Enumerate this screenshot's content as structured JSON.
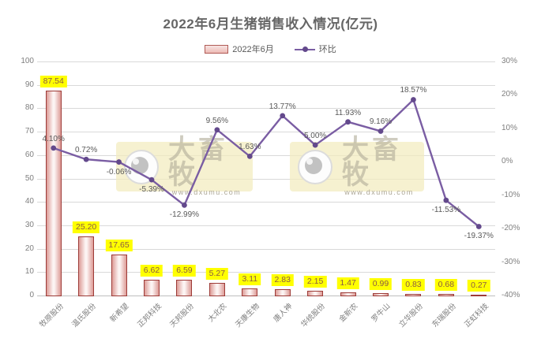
{
  "title": "2022年6月生猪销售收入情况(亿元)",
  "legend": {
    "bar_label": "2022年6月",
    "line_label": "环比"
  },
  "watermark": {
    "name": "大畜牧",
    "url": "www.dxumu.com"
  },
  "colors": {
    "bar_border": "#9d3c38",
    "bar_fill_edge": "#dd9b96",
    "bar_fill_center": "#fcf4f3",
    "bar_value_highlight": "#ffff00",
    "bar_value_text": "#8a5a45",
    "line": "#7a5da3",
    "marker": "#63498c",
    "gridline": "#d9d9d9",
    "axis_text": "#7f7f7f",
    "title_text": "#666666"
  },
  "chart_data": {
    "type": "bar",
    "title": "2022年6月生猪销售收入情况(亿元)",
    "categories": [
      "牧原股份",
      "温氏股份",
      "新希望",
      "正邦科技",
      "天邦股份",
      "大北农",
      "天康生物",
      "唐人神",
      "华统股份",
      "金新农",
      "罗牛山",
      "立华股份",
      "东瑞股份",
      "正虹科技"
    ],
    "series": [
      {
        "name": "2022年6月",
        "type": "bar",
        "axis": "left",
        "values": [
          87.54,
          25.2,
          17.65,
          6.62,
          6.59,
          5.27,
          3.11,
          2.83,
          2.15,
          1.47,
          0.99,
          0.83,
          0.68,
          0.27
        ],
        "labels": [
          "87.54",
          "25.20",
          "17.65",
          "6.62",
          "6.59",
          "5.27",
          "3.11",
          "2.83",
          "2.15",
          "1.47",
          "0.99",
          "0.83",
          "0.68",
          "0.27"
        ]
      },
      {
        "name": "环比",
        "type": "line",
        "axis": "right",
        "values": [
          4.1,
          0.72,
          -0.06,
          -5.39,
          -12.99,
          9.56,
          1.63,
          13.77,
          5.0,
          11.93,
          9.16,
          18.57,
          -11.53,
          -19.37
        ],
        "labels": [
          "4.10%",
          "0.72%",
          "-0.06%",
          "-5.39%",
          "-12.99%",
          "9.56%",
          "1.63%",
          "13.77%",
          "5.00%",
          "11.93%",
          "9.16%",
          "18.57%",
          "-11.53%",
          "-19.37%"
        ]
      }
    ],
    "left_axis": {
      "min": 0,
      "max": 100,
      "step": 10,
      "ticks": [
        "100",
        "90",
        "80",
        "70",
        "60",
        "50",
        "40",
        "30",
        "20",
        "10",
        "0"
      ]
    },
    "right_axis": {
      "min": -40,
      "max": 30,
      "step": 10,
      "ticks": [
        "30%",
        "20%",
        "10%",
        "0%",
        "-10%",
        "-20%",
        "-30%",
        "-40%"
      ]
    },
    "grid": true,
    "legend_position": "top"
  }
}
